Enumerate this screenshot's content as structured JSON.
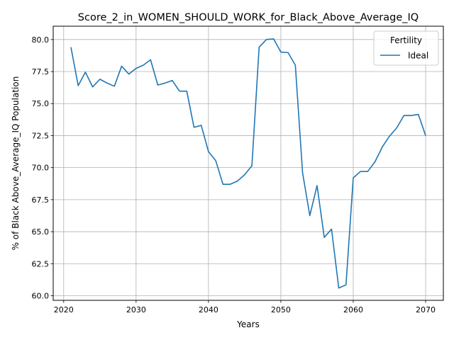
{
  "chart_data": {
    "type": "line",
    "title": "Score_2_in_WOMEN_SHOULD_WORK_for_Black_Above_Average_IQ",
    "xlabel": "Years",
    "ylabel": "% of Black Above_Average_IQ Population",
    "xlim": [
      2018.55,
      2072.45
    ],
    "ylim": [
      59.64,
      81.04
    ],
    "xticks": [
      2020,
      2030,
      2040,
      2050,
      2060,
      2070
    ],
    "xtick_labels": [
      "2020",
      "2030",
      "2040",
      "2050",
      "2060",
      "2070"
    ],
    "yticks": [
      60.0,
      62.5,
      65.0,
      67.5,
      70.0,
      72.5,
      75.0,
      77.5,
      80.0
    ],
    "ytick_labels": [
      "60.0",
      "62.5",
      "65.0",
      "67.5",
      "70.0",
      "72.5",
      "75.0",
      "77.5",
      "80.0"
    ],
    "grid": true,
    "legend": {
      "title": "Fertility",
      "position": "top-right"
    },
    "series": [
      {
        "name": "Ideal",
        "color": "#1f77b4",
        "x": [
          2021,
          2022,
          2023,
          2024,
          2025,
          2026,
          2027,
          2028,
          2029,
          2030,
          2031,
          2032,
          2033,
          2034,
          2035,
          2036,
          2037,
          2038,
          2039,
          2040,
          2041,
          2042,
          2043,
          2044,
          2045,
          2046,
          2047,
          2048,
          2049,
          2050,
          2051,
          2052,
          2053,
          2054,
          2055,
          2056,
          2057,
          2058,
          2059,
          2060,
          2061,
          2062,
          2063,
          2064,
          2065,
          2066,
          2067,
          2068,
          2069,
          2070
        ],
        "values": [
          79.4,
          76.4,
          77.45,
          76.3,
          76.9,
          76.6,
          76.35,
          77.92,
          77.3,
          77.75,
          78.0,
          78.42,
          76.45,
          76.6,
          76.8,
          75.97,
          75.97,
          73.15,
          73.3,
          71.25,
          70.55,
          68.7,
          68.7,
          68.95,
          69.45,
          70.15,
          79.4,
          80.0,
          80.05,
          79.02,
          78.98,
          78.0,
          69.6,
          66.25,
          68.6,
          64.55,
          65.2,
          60.6,
          60.85,
          69.2,
          69.7,
          69.7,
          70.45,
          71.6,
          72.45,
          73.1,
          74.07,
          74.07,
          74.15,
          72.5
        ]
      }
    ]
  }
}
